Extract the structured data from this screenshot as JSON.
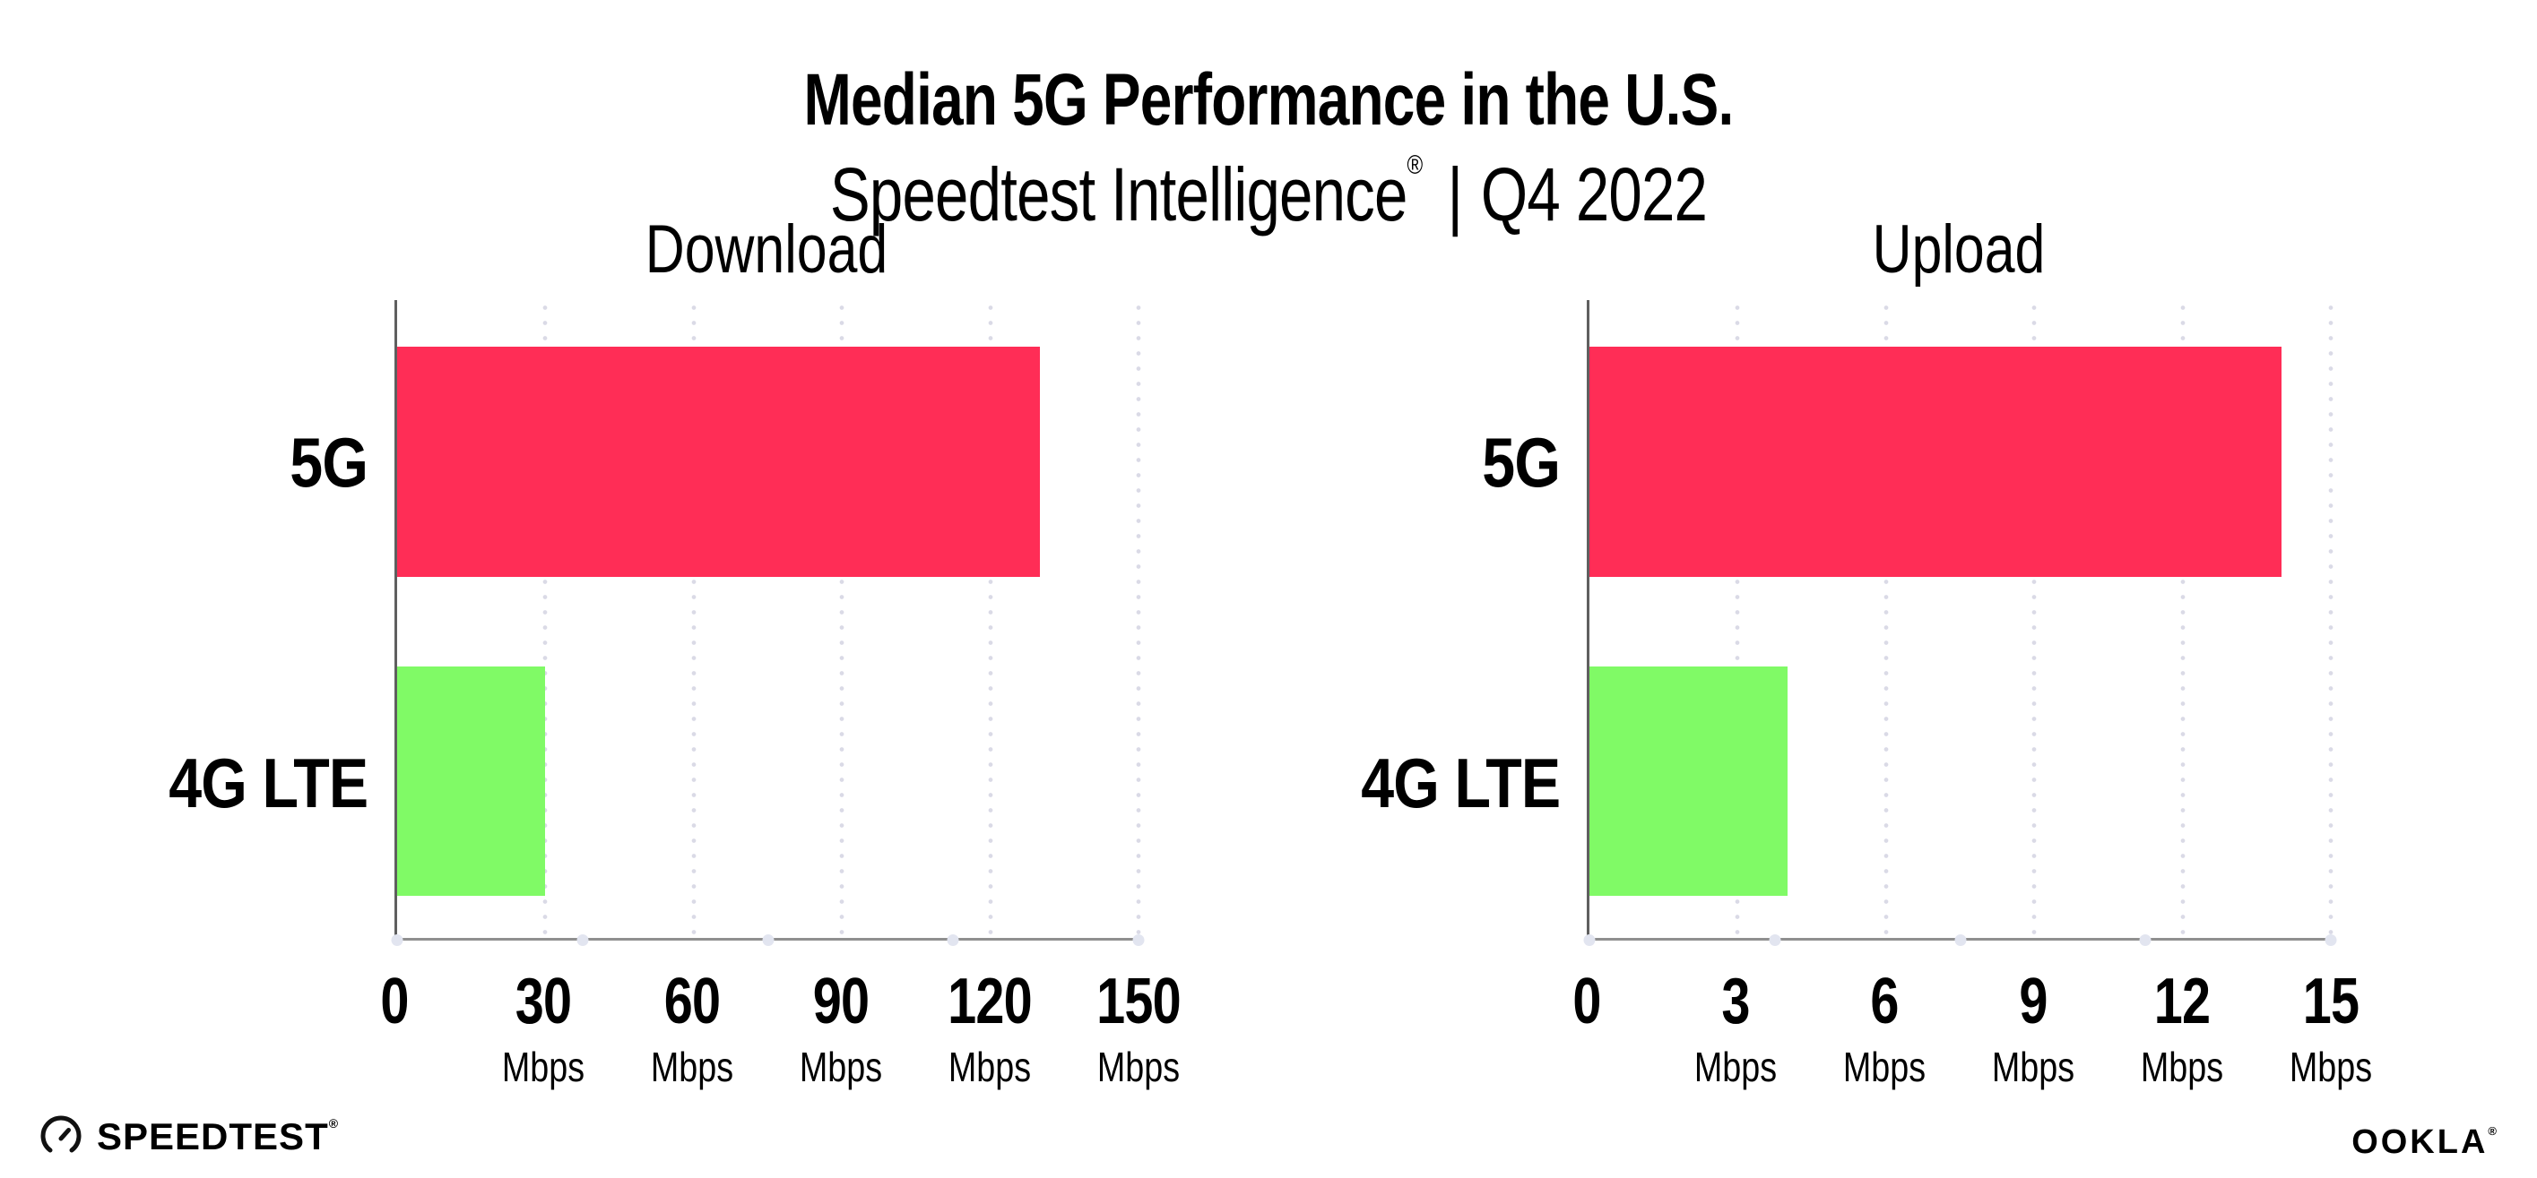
{
  "header": {
    "title": "Median 5G Performance in the U.S.",
    "subtitle_brand": "Speedtest Intelligence",
    "subtitle_reg": "®",
    "subtitle_sep": "|",
    "subtitle_period": "Q4 2022"
  },
  "chart_data": [
    {
      "type": "bar",
      "orientation": "horizontal",
      "title": "Download",
      "categories": [
        "5G",
        "4G LTE"
      ],
      "values": [
        130,
        30
      ],
      "unit": "Mbps",
      "xlim": [
        0,
        150
      ],
      "ticks": [
        0,
        30,
        60,
        90,
        120,
        150
      ],
      "bar_colors": [
        "#FF2D56",
        "#80FA66"
      ],
      "grid": "dotted-vertical",
      "legend": "none"
    },
    {
      "type": "bar",
      "orientation": "horizontal",
      "title": "Upload",
      "categories": [
        "5G",
        "4G LTE"
      ],
      "values": [
        14,
        4
      ],
      "unit": "Mbps",
      "xlim": [
        0,
        15
      ],
      "ticks": [
        0,
        3,
        6,
        9,
        12,
        15
      ],
      "bar_colors": [
        "#FF2D56",
        "#80FA66"
      ],
      "grid": "dotted-vertical",
      "legend": "none"
    }
  ],
  "footer": {
    "speedtest_label": "SPEEDTEST",
    "speedtest_mark": "®",
    "ookla_label": "OOKLA",
    "ookla_mark": "®"
  },
  "colors": {
    "bar_5g": "#FF2D56",
    "bar_4g_lte": "#80FA66",
    "gridline": "#dadae6",
    "x_axis": "#8f8f8f",
    "y_axis": "#5f5f5f",
    "text": "#000000",
    "background": "#ffffff"
  }
}
